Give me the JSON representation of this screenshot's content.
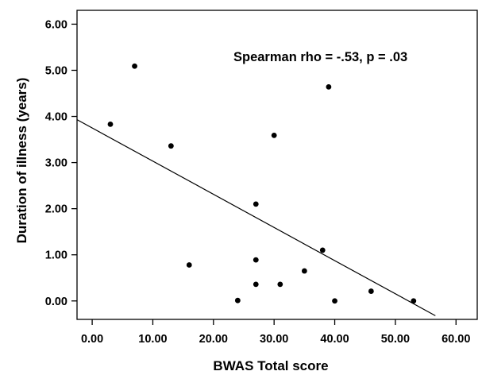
{
  "chart_data": {
    "type": "scatter",
    "title": "",
    "xlabel": "BWAS Total score",
    "ylabel": "Duration of illness (years)",
    "xlim": [
      -2.5,
      63.5
    ],
    "ylim": [
      -0.4,
      6.3
    ],
    "x_ticks": [
      0,
      10,
      20,
      30,
      40,
      50,
      60
    ],
    "x_tick_labels": [
      "0.00",
      "10.00",
      "20.00",
      "30.00",
      "40.00",
      "50.00",
      "60.00"
    ],
    "y_ticks": [
      0,
      1,
      2,
      3,
      4,
      5,
      6
    ],
    "y_tick_labels": [
      "0.00",
      "1.00",
      "2.00",
      "3.00",
      "4.00",
      "5.00",
      "6.00"
    ],
    "grid": false,
    "legend": "none",
    "annotation": "Spearman rho = -.53, p = .03",
    "points": [
      {
        "x": 3,
        "y": 3.83
      },
      {
        "x": 7,
        "y": 5.09
      },
      {
        "x": 13,
        "y": 3.36
      },
      {
        "x": 16,
        "y": 0.78
      },
      {
        "x": 24,
        "y": 0.01
      },
      {
        "x": 27,
        "y": 2.1
      },
      {
        "x": 27,
        "y": 0.89
      },
      {
        "x": 27,
        "y": 0.36
      },
      {
        "x": 30,
        "y": 3.59
      },
      {
        "x": 31,
        "y": 0.36
      },
      {
        "x": 35,
        "y": 0.65
      },
      {
        "x": 38,
        "y": 1.1
      },
      {
        "x": 39,
        "y": 4.64
      },
      {
        "x": 40,
        "y": 0.0
      },
      {
        "x": 46,
        "y": 0.21
      },
      {
        "x": 53,
        "y": 0.0
      }
    ],
    "fit_line": {
      "x": [
        -2.5,
        56.6
      ],
      "y": [
        3.93,
        -0.32
      ]
    }
  }
}
